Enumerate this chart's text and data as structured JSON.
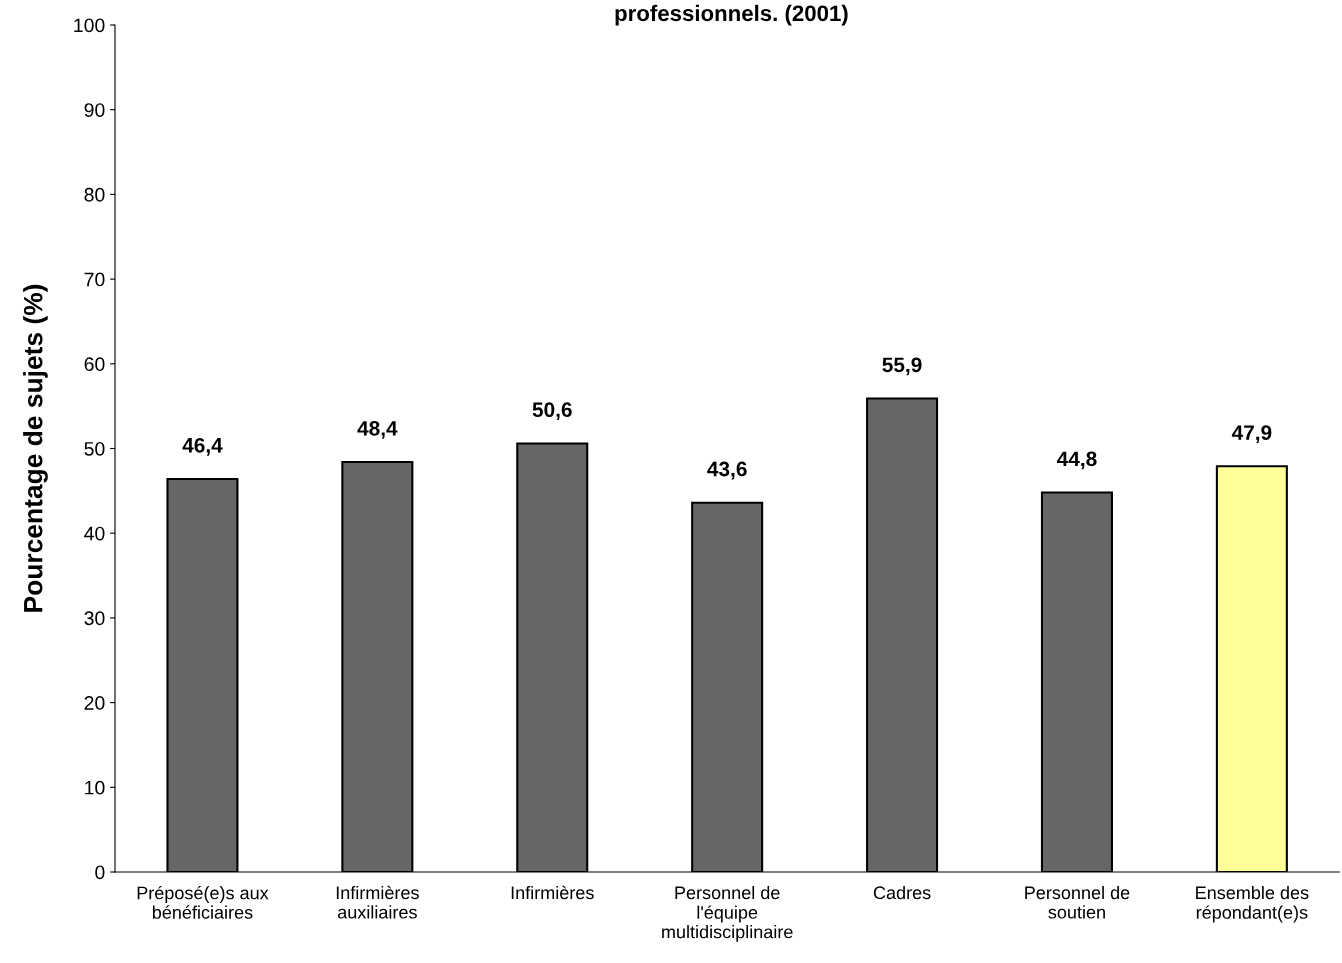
{
  "chart_data": {
    "type": "bar",
    "title": "professionnels. (2001)",
    "ylabel": "Pourcentage de sujets (%)",
    "categories": [
      "Préposé(e)s aux\nbénéficiaires",
      "Infirmières\nauxiliaires",
      "Infirmières",
      "Personnel de\nl'équipe\nmultidisciplinaire",
      "Cadres",
      "Personnel de\nsoutien",
      "Ensemble des\nrépondant(e)s"
    ],
    "values": [
      46.4,
      48.4,
      50.6,
      43.6,
      55.9,
      44.8,
      47.9
    ],
    "colors": [
      "#666666",
      "#666666",
      "#666666",
      "#666666",
      "#666666",
      "#666666",
      "#ffff99"
    ],
    "value_labels": [
      "46,4",
      "48,4",
      "50,6",
      "43,6",
      "55,9",
      "44,8",
      "47,9"
    ],
    "ylim": [
      0,
      100
    ],
    "yticks": [
      0,
      10,
      20,
      30,
      40,
      50,
      60,
      70,
      80,
      90,
      100
    ],
    "grid": false,
    "legend": false
  }
}
